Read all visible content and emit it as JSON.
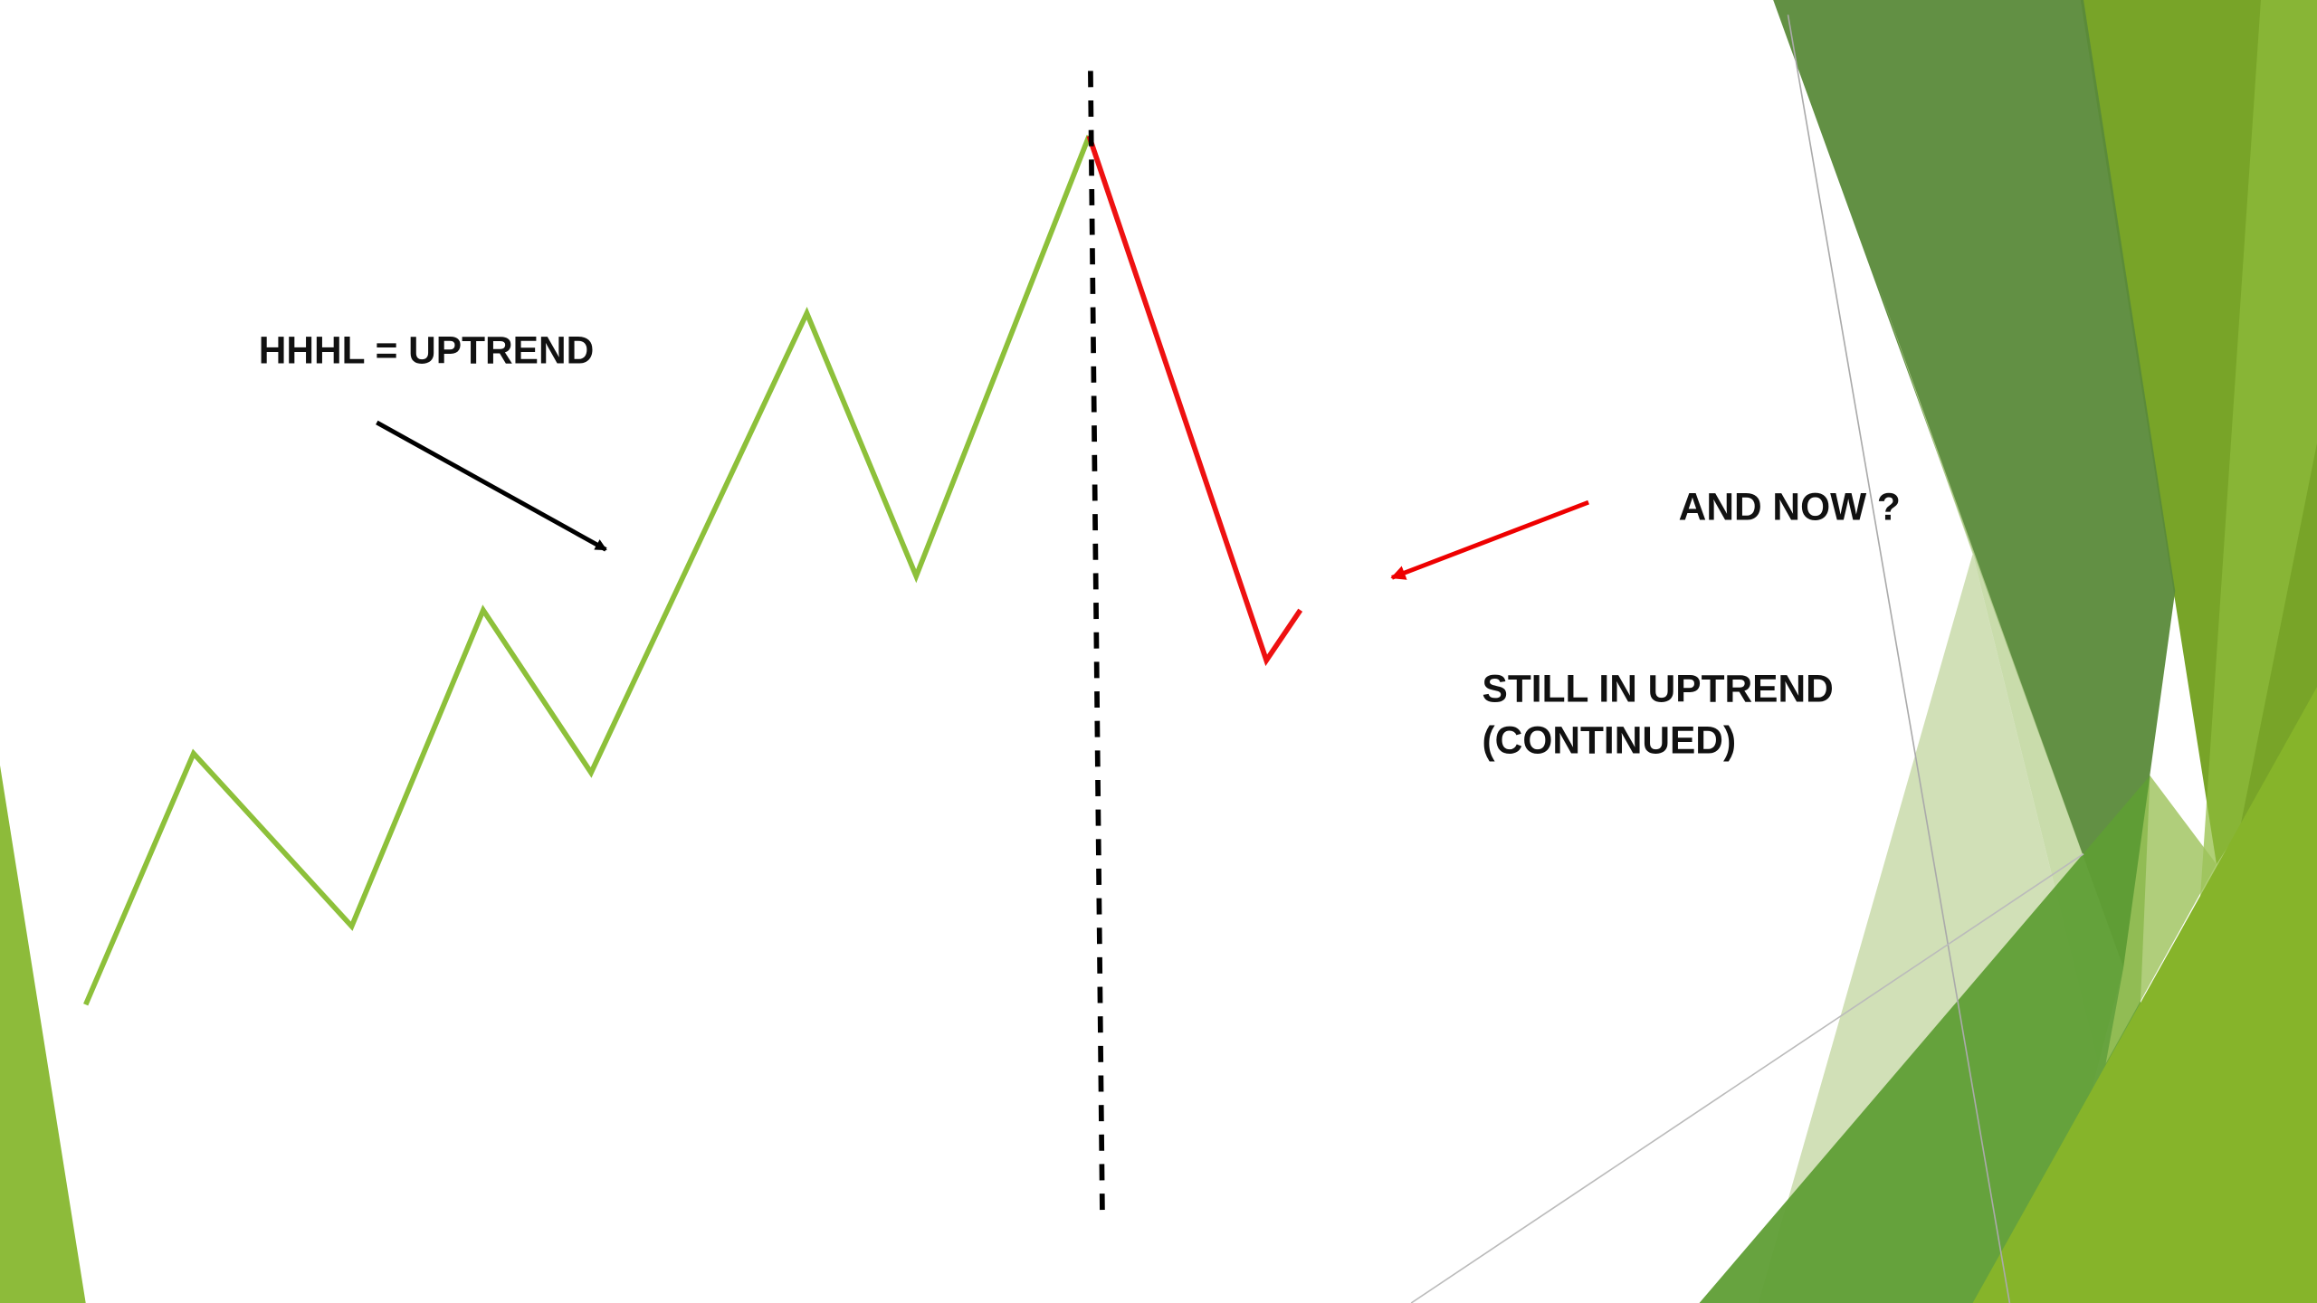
{
  "labels": {
    "trend": "HHHL = UPTREND",
    "question": "AND NOW ?",
    "answer": [
      "STILL IN UPTREND",
      "(CONTINUED)"
    ]
  }
}
